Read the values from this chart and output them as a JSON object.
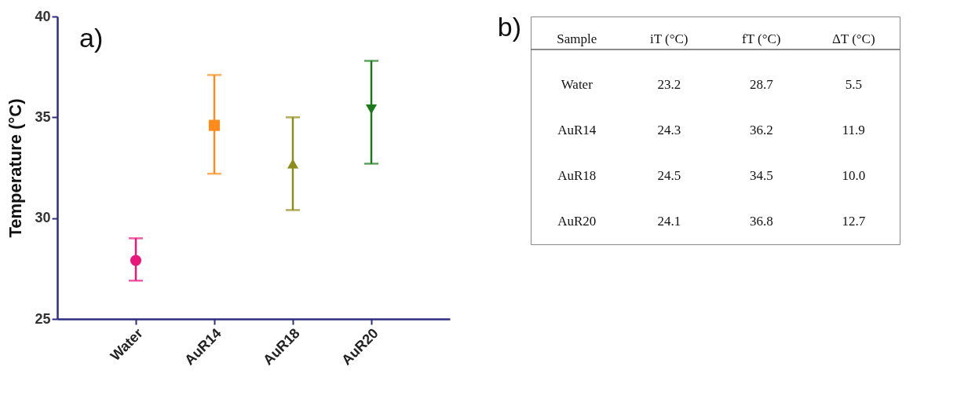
{
  "chart_data": [
    {
      "type": "scatter",
      "ylabel": "Temperature (°C)",
      "categories": [
        "Water",
        "AuR14",
        "AuR18",
        "AuR20"
      ],
      "ylim": [
        25,
        40
      ],
      "yticks": [
        25,
        30,
        35,
        40
      ],
      "grid": false,
      "legend": false,
      "annotations": [
        "a)"
      ],
      "series": [
        {
          "color": "#e8177a",
          "marker": "circle",
          "values": [
            27.9,
            null,
            null,
            null
          ],
          "errors": [
            [
              26.9,
              29.0
            ],
            null,
            null,
            null
          ]
        },
        {
          "color": "#ff8c1a",
          "marker": "square",
          "values": [
            null,
            34.6,
            null,
            null
          ],
          "errors": [
            null,
            [
              32.2,
              37.1
            ],
            null,
            null
          ]
        },
        {
          "color": "#8c8c1a",
          "marker": "triangle",
          "values": [
            null,
            null,
            32.7,
            null
          ],
          "errors": [
            null,
            null,
            [
              30.4,
              35.0
            ],
            null
          ]
        },
        {
          "color": "#1a7a1a",
          "marker": "triangle-down",
          "values": [
            null,
            null,
            null,
            35.4
          ],
          "errors": [
            null,
            null,
            null,
            [
              32.7,
              37.8
            ]
          ]
        }
      ]
    },
    {
      "type": "other",
      "annotations": [
        "b)"
      ],
      "categories": [
        "Sample",
        "iT (°C)",
        "fT (°C)",
        "ΔT (°C)"
      ],
      "cell_labels": [
        [
          "Water",
          "23.2",
          "28.7",
          "5.5"
        ],
        [
          "AuR14",
          "24.3",
          "36.2",
          "11.9"
        ],
        [
          "AuR18",
          "24.5",
          "34.5",
          "10.0"
        ],
        [
          "AuR20",
          "24.1",
          "36.8",
          "12.7"
        ]
      ]
    }
  ]
}
